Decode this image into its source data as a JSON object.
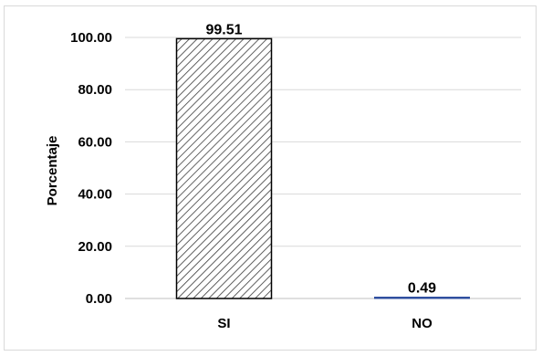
{
  "chart_data": {
    "type": "bar",
    "categories": [
      "SI",
      "NO"
    ],
    "values": [
      99.51,
      0.49
    ],
    "value_labels": [
      "99.51",
      "0.49"
    ],
    "ylabel": "Porcentaje",
    "xlabel": "",
    "ylim": [
      0,
      100
    ],
    "yticks": [
      0,
      20,
      40,
      60,
      80,
      100
    ],
    "ytick_labels": [
      "0.00",
      "20.00",
      "40.00",
      "60.00",
      "80.00",
      "100.00"
    ],
    "grid": true,
    "colors": {
      "bar_fill_pattern": "diagonal-hatch",
      "hatch_color": "#3a3a3a",
      "bar_outline": "#000000",
      "no_bar_color": "#2f4f9f",
      "gridline": "#d9d9d9",
      "text": "#000000"
    }
  }
}
